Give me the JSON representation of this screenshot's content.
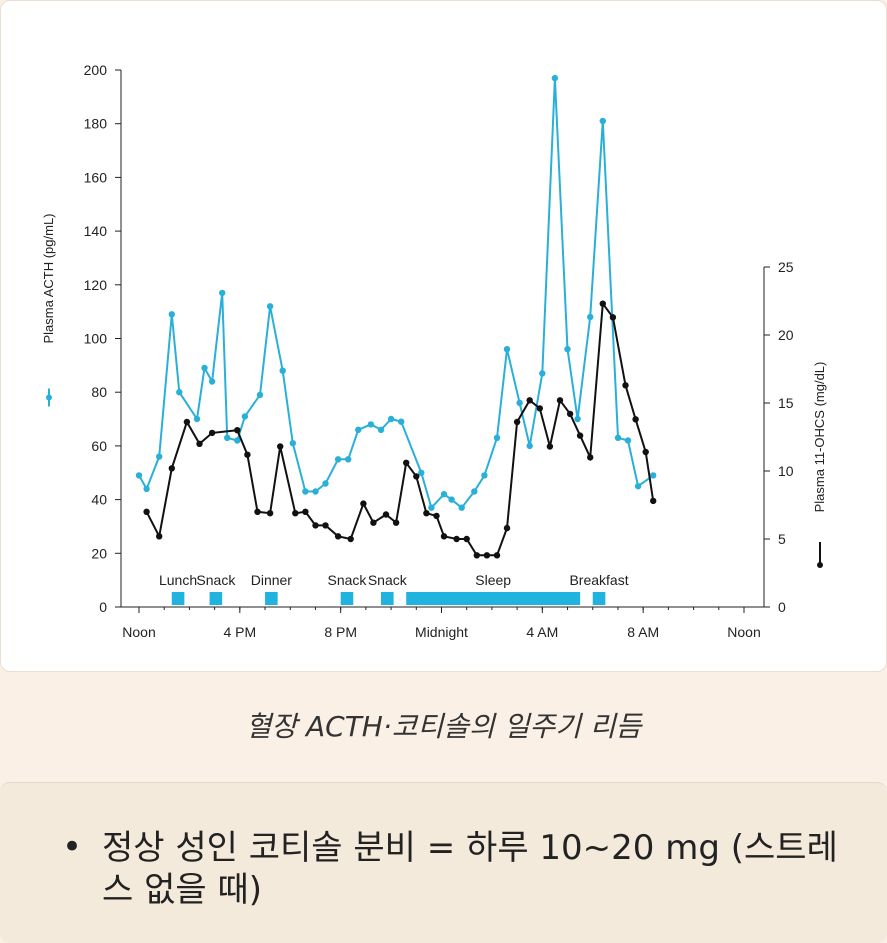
{
  "chart_data": {
    "type": "line",
    "x_ticks": [
      "Noon",
      "4 PM",
      "8 PM",
      "Midnight",
      "4 AM",
      "8 AM",
      "Noon"
    ],
    "x_range_hours": [
      12,
      36
    ],
    "y_left": {
      "label": "Plasma ACTH (pg/mL)",
      "ticks": [
        0,
        20,
        40,
        60,
        80,
        100,
        120,
        140,
        160,
        180,
        200
      ],
      "range": [
        0,
        200
      ]
    },
    "y_right": {
      "label": "Plasma 11-OHCS (mg/dL)",
      "ticks": [
        0,
        5,
        10,
        15,
        20,
        25
      ],
      "range": [
        0,
        25
      ]
    },
    "colors": {
      "acth": "#2ab0d8",
      "ohcs": "#111111",
      "bars": "#21b3e0"
    },
    "series": [
      {
        "name": "Plasma ACTH (pg/mL)",
        "axis": "left",
        "points": [
          [
            12.0,
            49
          ],
          [
            12.3,
            44
          ],
          [
            12.8,
            56
          ],
          [
            13.3,
            109
          ],
          [
            13.6,
            80
          ],
          [
            14.3,
            70
          ],
          [
            14.6,
            89
          ],
          [
            14.9,
            84
          ],
          [
            15.3,
            117
          ],
          [
            15.5,
            63
          ],
          [
            15.9,
            62
          ],
          [
            16.2,
            71
          ],
          [
            16.8,
            79
          ],
          [
            17.2,
            112
          ],
          [
            17.7,
            88
          ],
          [
            18.1,
            61
          ],
          [
            18.6,
            43
          ],
          [
            19.0,
            43
          ],
          [
            19.4,
            46
          ],
          [
            19.9,
            55
          ],
          [
            20.3,
            55
          ],
          [
            20.7,
            66
          ],
          [
            21.2,
            68
          ],
          [
            21.6,
            66
          ],
          [
            22.0,
            70
          ],
          [
            22.4,
            69
          ],
          [
            23.2,
            50
          ],
          [
            23.6,
            37
          ],
          [
            24.1,
            42
          ],
          [
            24.4,
            40
          ],
          [
            24.8,
            37
          ],
          [
            25.3,
            43
          ],
          [
            25.7,
            49
          ],
          [
            26.2,
            63
          ],
          [
            26.6,
            96
          ],
          [
            27.1,
            76
          ],
          [
            27.5,
            60
          ],
          [
            28.0,
            87
          ],
          [
            28.5,
            197
          ],
          [
            29.0,
            96
          ],
          [
            29.4,
            70
          ],
          [
            29.9,
            108
          ],
          [
            30.4,
            181
          ],
          [
            31.0,
            63
          ],
          [
            31.4,
            62
          ],
          [
            31.8,
            45
          ],
          [
            32.4,
            49
          ]
        ]
      },
      {
        "name": "Plasma 11-OHCS (mg/dL)",
        "axis": "right",
        "points": [
          [
            12.3,
            7.0
          ],
          [
            12.8,
            5.2
          ],
          [
            13.3,
            10.2
          ],
          [
            13.9,
            13.6
          ],
          [
            14.4,
            12.0
          ],
          [
            14.9,
            12.8
          ],
          [
            15.9,
            13.0
          ],
          [
            16.3,
            11.2
          ],
          [
            16.7,
            7.0
          ],
          [
            17.2,
            6.9
          ],
          [
            17.6,
            11.8
          ],
          [
            18.2,
            6.9
          ],
          [
            18.6,
            7.0
          ],
          [
            19.0,
            6.0
          ],
          [
            19.4,
            6.0
          ],
          [
            19.9,
            5.2
          ],
          [
            20.4,
            5.0
          ],
          [
            20.9,
            7.6
          ],
          [
            21.3,
            6.2
          ],
          [
            21.8,
            6.8
          ],
          [
            22.2,
            6.2
          ],
          [
            22.6,
            10.6
          ],
          [
            23.0,
            9.6
          ],
          [
            23.4,
            6.9
          ],
          [
            23.8,
            6.7
          ],
          [
            24.1,
            5.2
          ],
          [
            24.6,
            5.0
          ],
          [
            25.0,
            5.0
          ],
          [
            25.4,
            3.8
          ],
          [
            25.8,
            3.8
          ],
          [
            26.2,
            3.8
          ],
          [
            26.6,
            5.8
          ],
          [
            27.0,
            13.6
          ],
          [
            27.5,
            15.2
          ],
          [
            27.9,
            14.6
          ],
          [
            28.3,
            11.8
          ],
          [
            28.7,
            15.2
          ],
          [
            29.1,
            14.2
          ],
          [
            29.5,
            12.6
          ],
          [
            29.9,
            11.0
          ],
          [
            30.4,
            22.3
          ],
          [
            30.8,
            21.3
          ],
          [
            31.3,
            16.3
          ],
          [
            31.7,
            13.8
          ],
          [
            32.1,
            11.4
          ],
          [
            32.4,
            7.8
          ]
        ]
      }
    ],
    "events": [
      {
        "label": "Lunch",
        "start": 13.3,
        "end": 13.8
      },
      {
        "label": "Snack",
        "start": 14.8,
        "end": 15.3
      },
      {
        "label": "Dinner",
        "start": 17.0,
        "end": 17.5
      },
      {
        "label": "Snack",
        "start": 20.0,
        "end": 20.5
      },
      {
        "label": "Snack",
        "start": 21.6,
        "end": 22.1
      },
      {
        "label": "Sleep",
        "start": 22.6,
        "end": 29.5
      },
      {
        "label": "Breakfast",
        "start": 30.0,
        "end": 30.5
      }
    ]
  },
  "caption": "혈장 ACTH·코티솔의 일주기 리듬",
  "note": {
    "bullet": "•",
    "text": "정상 성인 코티솔 분비 = 하루 10~20 mg (스트레스 없을 때)"
  }
}
